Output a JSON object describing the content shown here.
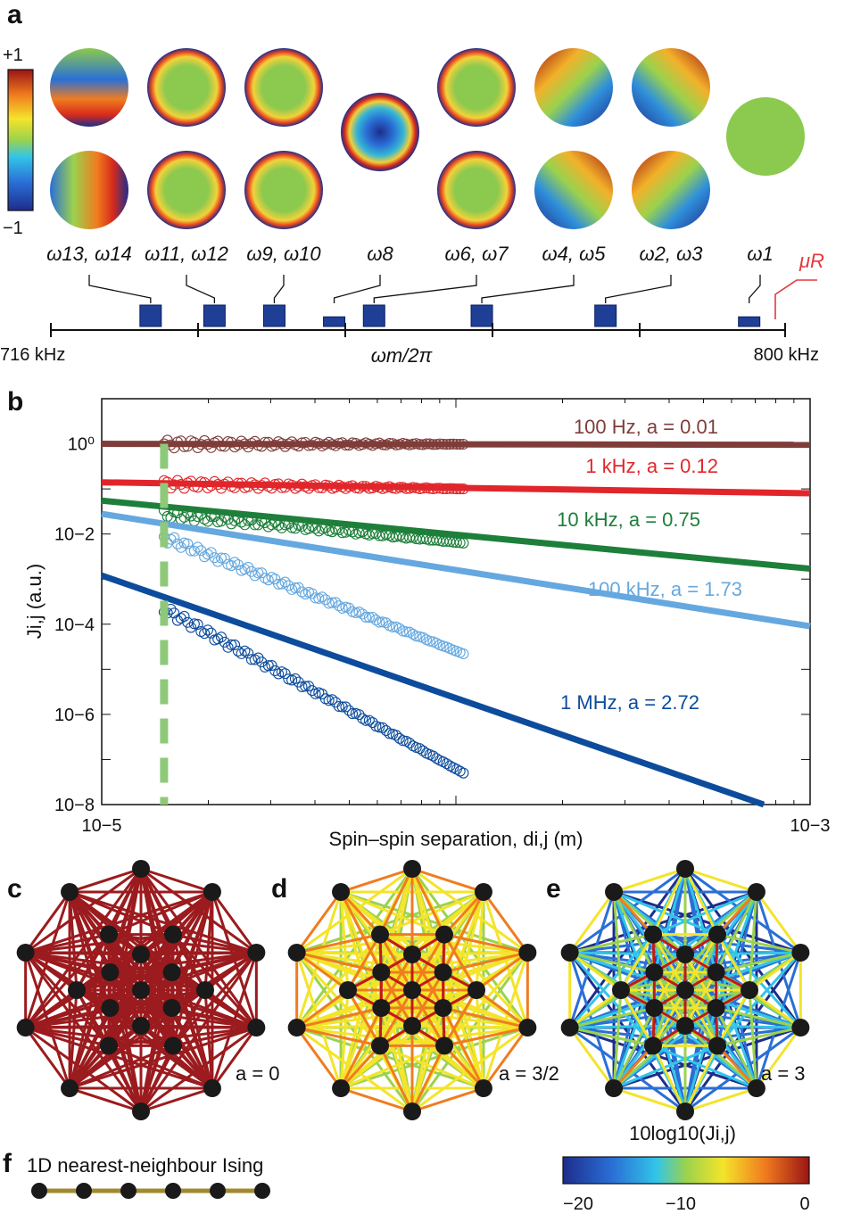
{
  "panels": {
    "a": "a",
    "b": "b",
    "c": "c",
    "d": "d",
    "e": "e",
    "f": "f"
  },
  "colorbar_a": {
    "max_label": "+1",
    "min_label": "−1"
  },
  "modes": [
    {
      "label": "ω13, ω14",
      "freq_khz": 728.5,
      "height": 1.0
    },
    {
      "label": "ω11, ω12",
      "freq_khz": 736.5,
      "height": 1.0
    },
    {
      "label": "ω9, ω10",
      "freq_khz": 744.0,
      "height": 1.0
    },
    {
      "label": "ω8",
      "freq_khz": 751.5,
      "height": 0.45
    },
    {
      "label": "ω6, ω7",
      "freq_khz": 756.5,
      "height": 1.0
    },
    {
      "label": "ω4, ω5",
      "freq_khz": 770.0,
      "height": 1.0
    },
    {
      "label": "ω2, ω3",
      "freq_khz": 785.5,
      "height": 1.0
    },
    {
      "label": "ω1",
      "freq_khz": 803.5,
      "height": 0.45
    }
  ],
  "mu_label": "μR",
  "freq_axis": {
    "left_label": "716 kHz",
    "right_label": "800 kHz",
    "center_label": "ωm/2π"
  },
  "chart_data": {
    "type": "scatter",
    "xlabel": "Spin–spin separation, di,j (m)",
    "ylabel": "Ji,j (a.u.)",
    "xscale": "log",
    "yscale": "log",
    "xlim": [
      1e-05,
      0.001
    ],
    "ylim": [
      1e-08,
      10
    ],
    "x_ticks": [
      {
        "value": 1e-05,
        "label": "10−5"
      },
      {
        "value": 0.001,
        "label": "10−3"
      }
    ],
    "y_ticks": [
      {
        "value": 1,
        "label": "10⁰"
      },
      {
        "value": 0.01,
        "label": "10−2"
      },
      {
        "value": 0.0001,
        "label": "10−4"
      },
      {
        "value": 1e-06,
        "label": "10−6"
      },
      {
        "value": 1e-08,
        "label": "10−8"
      }
    ],
    "series": [
      {
        "name": "100 Hz, a = 0.01",
        "a": 0.01,
        "color": "#7f3d3a",
        "fit": {
          "x": [
            1e-05,
            0.001
          ],
          "y": [
            1.0,
            0.95
          ]
        },
        "data_x": [
          1.5e-05,
          0.000105
        ],
        "data_y": [
          1.0,
          0.98
        ]
      },
      {
        "name": "1 kHz, a = 0.12",
        "a": 0.12,
        "color": "#e1262b",
        "fit": {
          "x": [
            1e-05,
            0.001
          ],
          "y": [
            0.14,
            0.08
          ]
        },
        "data_x": [
          1.5e-05,
          0.000105
        ],
        "data_y": [
          0.13,
          0.1
        ]
      },
      {
        "name": "10 kHz, a = 0.75",
        "a": 0.75,
        "color": "#1d7f3a",
        "fit": {
          "x": [
            1e-05,
            0.001
          ],
          "y": [
            0.055,
            0.0017
          ]
        },
        "data_x": [
          1.5e-05,
          0.000105
        ],
        "data_y": [
          0.028,
          0.0063
        ]
      },
      {
        "name": "100 kHz, a = 1.73",
        "a": 1.73,
        "color": "#65a8df",
        "fit": {
          "x": [
            1e-05,
            0.001
          ],
          "y": [
            0.028,
            9e-05
          ]
        },
        "data_x": [
          1.5e-05,
          0.000105
        ],
        "data_y": [
          0.0085,
          2.2e-05
        ]
      },
      {
        "name": "1 MHz, a = 2.72",
        "a": 2.72,
        "color": "#0d4c9c",
        "fit": {
          "x": [
            1e-05,
            0.00074
          ],
          "y": [
            0.0012,
            1e-08
          ]
        },
        "data_x": [
          1.5e-05,
          0.000105
        ],
        "data_y": [
          0.00022,
          5e-08
        ]
      }
    ],
    "vline": {
      "x": 1.5e-05,
      "color": "#8ec97a"
    }
  },
  "graphs": [
    {
      "label": "a = 0",
      "color": "#9b1b1e"
    },
    {
      "label": "a = 3/2",
      "color": "#f0b43a"
    },
    {
      "label": "a = 3",
      "color": "#5fc1e8"
    }
  ],
  "ising_label": "1D nearest-neighbour Ising",
  "colorbar_e": {
    "title": "10log10(Ji,j)",
    "ticks": [
      "−20",
      "−10",
      "0"
    ]
  }
}
